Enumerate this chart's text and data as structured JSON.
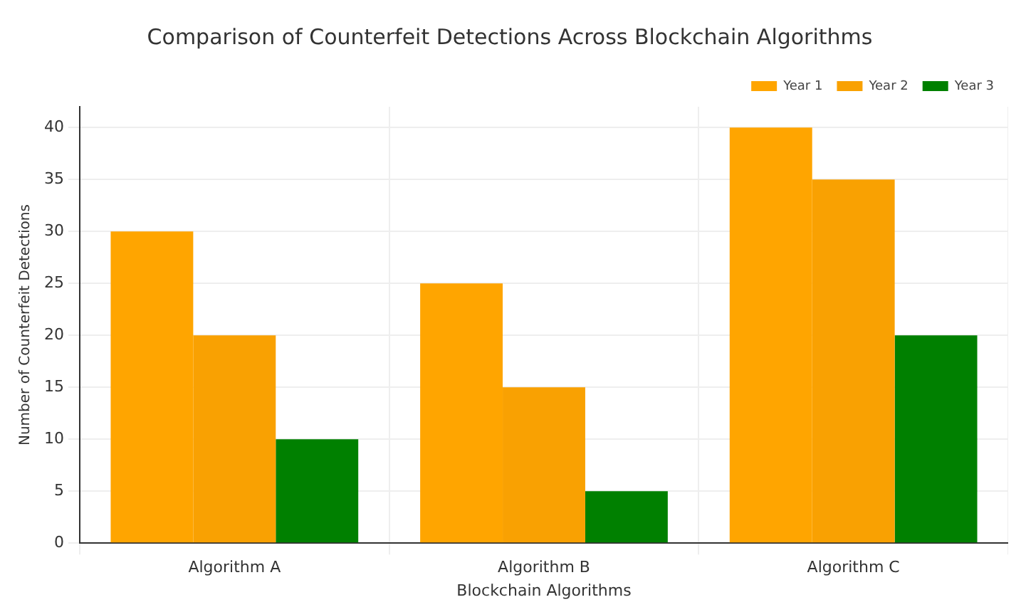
{
  "chart_data": {
    "type": "bar",
    "title": "Comparison of Counterfeit Detections Across Blockchain Algorithms",
    "xlabel": "Blockchain Algorithms",
    "ylabel": "Number of Counterfeit Detections",
    "categories": [
      "Algorithm A",
      "Algorithm B",
      "Algorithm C"
    ],
    "series": [
      {
        "name": "Year 1",
        "color": "#ffa500",
        "values": [
          30,
          25,
          40
        ]
      },
      {
        "name": "Year 2",
        "color": "#f9a102",
        "values": [
          20,
          15,
          35
        ]
      },
      {
        "name": "Year 3",
        "color": "#008000",
        "values": [
          10,
          5,
          20
        ]
      }
    ],
    "ylim": [
      0,
      42
    ],
    "yticks": [
      0,
      5,
      10,
      15,
      20,
      25,
      30,
      35,
      40
    ],
    "grid": true,
    "legend": "top right"
  }
}
